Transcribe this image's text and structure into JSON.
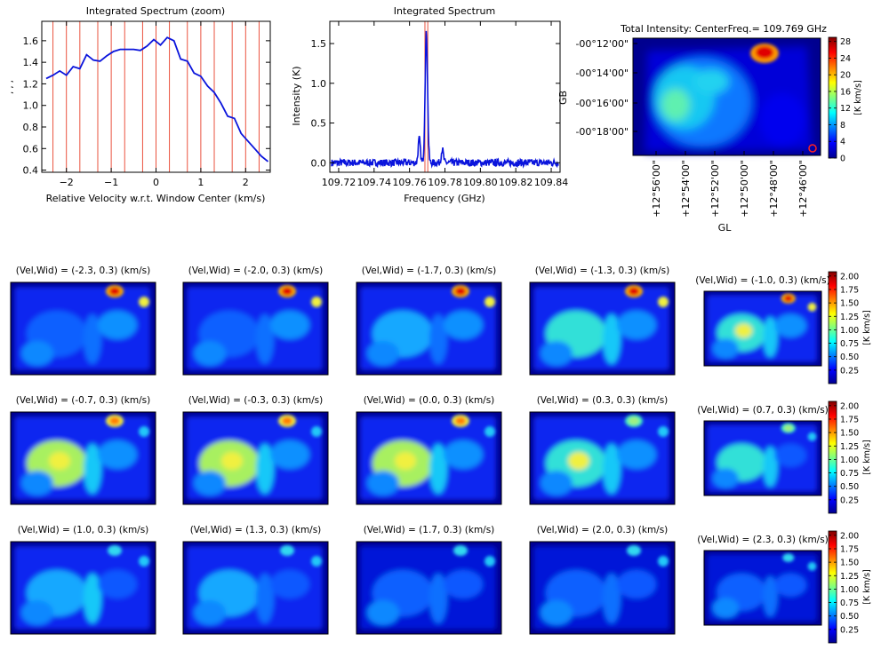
{
  "colors": {
    "line": "#0a14dc",
    "marker": "#e8402a",
    "axis": "#000000"
  },
  "chart_data": [
    {
      "id": "zoom",
      "type": "line",
      "title": "Integrated Spectrum (zoom)",
      "xlabel": "Relative Velocity w.r.t. Window Center (km/s)",
      "ylabel": ", , ,",
      "xlim": [
        -2.55,
        2.55
      ],
      "ylim": [
        0.38,
        1.78
      ],
      "xticks": [
        -2,
        -1,
        0,
        1,
        2
      ],
      "xticklabels": [
        "−2",
        "−1",
        "0",
        "1",
        "2"
      ],
      "yticks": [
        0.4,
        0.6,
        0.8,
        1.0,
        1.2,
        1.4,
        1.6
      ],
      "yticklabels": [
        "0.4",
        "0.6",
        "0.8",
        "1.0",
        "1.2",
        "1.4",
        "1.6"
      ],
      "channel_markers": [
        -2.3,
        -2.0,
        -1.7,
        -1.3,
        -1.0,
        -0.7,
        -0.3,
        0.0,
        0.3,
        0.7,
        1.0,
        1.3,
        1.7,
        2.0,
        2.3
      ],
      "x": [
        -2.45,
        -2.3,
        -2.15,
        -2.0,
        -1.85,
        -1.7,
        -1.55,
        -1.4,
        -1.25,
        -1.1,
        -0.95,
        -0.8,
        -0.65,
        -0.5,
        -0.35,
        -0.2,
        -0.05,
        0.1,
        0.25,
        0.4,
        0.55,
        0.7,
        0.85,
        1.0,
        1.15,
        1.3,
        1.45,
        1.6,
        1.75,
        1.9,
        2.05,
        2.2,
        2.35,
        2.5
      ],
      "y": [
        1.25,
        1.28,
        1.32,
        1.28,
        1.36,
        1.34,
        1.47,
        1.42,
        1.41,
        1.46,
        1.5,
        1.52,
        1.52,
        1.52,
        1.51,
        1.55,
        1.61,
        1.56,
        1.63,
        1.6,
        1.43,
        1.41,
        1.3,
        1.27,
        1.18,
        1.12,
        1.02,
        0.9,
        0.88,
        0.74,
        0.67,
        0.6,
        0.53,
        0.48
      ]
    },
    {
      "id": "full",
      "type": "line",
      "title": "Integrated Spectrum",
      "xlabel": "Frequency (GHz)",
      "ylabel": "Intensity (K)",
      "xlim": [
        109.715,
        109.845
      ],
      "ylim": [
        -0.12,
        1.78
      ],
      "xticks": [
        109.72,
        109.74,
        109.76,
        109.78,
        109.8,
        109.82,
        109.84
      ],
      "xticklabels": [
        "109.72",
        "109.74",
        "109.76",
        "109.78",
        "109.80",
        "109.82",
        "109.84"
      ],
      "yticks": [
        0.0,
        0.5,
        1.0,
        1.5
      ],
      "yticklabels": [
        "0.0",
        "0.5",
        "1.0",
        "1.5"
      ],
      "markers": [
        109.7687,
        109.7703
      ],
      "baseline_start": 109.716,
      "baseline_end": 109.844,
      "peaks": [
        {
          "f": 109.7655,
          "a": 0.3,
          "w": 0.0006
        },
        {
          "f": 109.7695,
          "a": 1.63,
          "w": 0.0007
        },
        {
          "f": 109.7785,
          "a": 0.17,
          "w": 0.0006
        }
      ]
    },
    {
      "id": "moment",
      "type": "heatmap",
      "title": "Total Intensity: CenterFreq.= 109.769 GHz",
      "xlabel": "GL",
      "ylabel": "GB",
      "xticklabels": [
        "+12°56'00\"",
        "+12°54'00\"",
        "+12°52'00\"",
        "+12°50'00\"",
        "+12°48'00\"",
        "+12°46'00\""
      ],
      "yticklabels": [
        "-00°12'00\"",
        "-00°14'00\"",
        "-00°16'00\"",
        "-00°18'00\""
      ],
      "colorbar_label": "[K km/s]",
      "colorbar_range": [
        0,
        29
      ],
      "colorbar_ticks": [
        0,
        4,
        8,
        12,
        16,
        20,
        24,
        28
      ],
      "colorbar_ticklabels": [
        "0",
        "4",
        "8",
        "12",
        "16",
        "20",
        "24",
        "28"
      ]
    }
  ],
  "channel_maps": {
    "colorbar_label": "[K km/s]",
    "colorbar_range": [
      0,
      2.08
    ],
    "colorbar_ticks": [
      0.25,
      0.5,
      0.75,
      1.0,
      1.25,
      1.5,
      1.75,
      2.0
    ],
    "colorbar_ticklabels": [
      "0.25",
      "0.50",
      "0.75",
      "1.00",
      "1.25",
      "1.50",
      "1.75",
      "2.00"
    ],
    "panels": [
      {
        "vel": -2.3,
        "title": "(Vel,Wid) = (-2.3, 0.3) (km/s)"
      },
      {
        "vel": -2.0,
        "title": "(Vel,Wid) = (-2.0, 0.3) (km/s)"
      },
      {
        "vel": -1.7,
        "title": "(Vel,Wid) = (-1.7, 0.3) (km/s)"
      },
      {
        "vel": -1.3,
        "title": "(Vel,Wid) = (-1.3, 0.3) (km/s)"
      },
      {
        "vel": -1.0,
        "title": "(Vel,Wid) = (-1.0, 0.3) (km/s)"
      },
      {
        "vel": -0.7,
        "title": "(Vel,Wid) = (-0.7, 0.3) (km/s)"
      },
      {
        "vel": -0.3,
        "title": "(Vel,Wid) = (-0.3, 0.3) (km/s)"
      },
      {
        "vel": 0.0,
        "title": "(Vel,Wid) = (0.0, 0.3) (km/s)"
      },
      {
        "vel": 0.3,
        "title": "(Vel,Wid) = (0.3, 0.3) (km/s)"
      },
      {
        "vel": 0.7,
        "title": "(Vel,Wid) = (0.7, 0.3) (km/s)"
      },
      {
        "vel": 1.0,
        "title": "(Vel,Wid) = (1.0, 0.3) (km/s)"
      },
      {
        "vel": 1.3,
        "title": "(Vel,Wid) = (1.3, 0.3) (km/s)"
      },
      {
        "vel": 1.7,
        "title": "(Vel,Wid) = (1.7, 0.3) (km/s)"
      },
      {
        "vel": 2.0,
        "title": "(Vel,Wid) = (2.0, 0.3) (km/s)"
      },
      {
        "vel": 2.3,
        "title": "(Vel,Wid) = (2.3, 0.3) (km/s)"
      }
    ]
  }
}
